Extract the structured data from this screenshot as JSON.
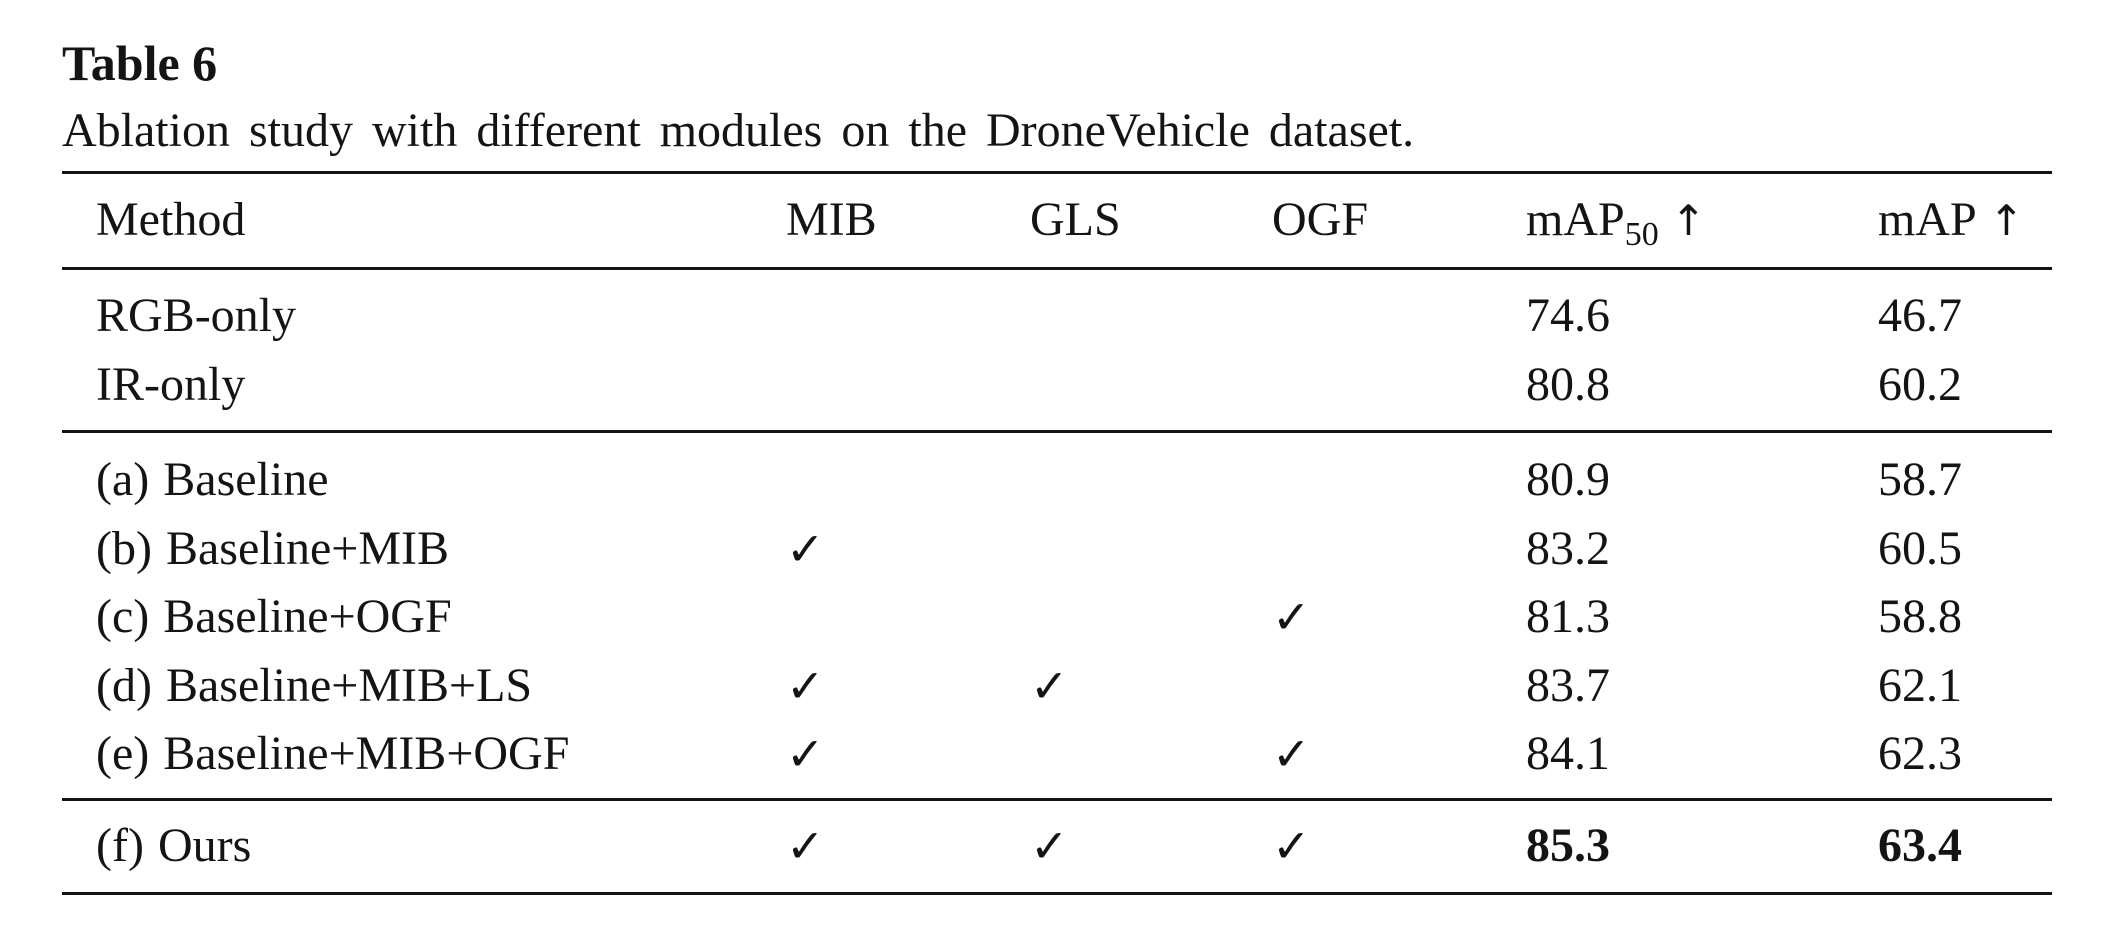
{
  "table": {
    "label": "Table 6",
    "caption": "Ablation study with different modules on the DroneVehicle dataset.",
    "headers": {
      "method": "Method",
      "mib": "MIB",
      "gls": "GLS",
      "ogf": "OGF",
      "map50_base": "mAP",
      "map50_sub": "50",
      "map50_arrow": "↑",
      "map": "mAP",
      "map_arrow": "↑"
    },
    "check_symbol": "✓",
    "groups": [
      [
        {
          "tag": "",
          "method": "RGB-only",
          "mib": "",
          "gls": "",
          "ogf": "",
          "map50": "74.6",
          "map": "46.7",
          "bold": false
        },
        {
          "tag": "",
          "method": "IR-only",
          "mib": "",
          "gls": "",
          "ogf": "",
          "map50": "80.8",
          "map": "60.2",
          "bold": false
        }
      ],
      [
        {
          "tag": "(a)",
          "method": "Baseline",
          "mib": "",
          "gls": "",
          "ogf": "",
          "map50": "80.9",
          "map": "58.7",
          "bold": false
        },
        {
          "tag": "(b)",
          "method": "Baseline+MIB",
          "mib": "✓",
          "gls": "",
          "ogf": "",
          "map50": "83.2",
          "map": "60.5",
          "bold": false
        },
        {
          "tag": "(c)",
          "method": "Baseline+OGF",
          "mib": "",
          "gls": "",
          "ogf": "✓",
          "map50": "81.3",
          "map": "58.8",
          "bold": false
        },
        {
          "tag": "(d)",
          "method": "Baseline+MIB+LS",
          "mib": "✓",
          "gls": "✓",
          "ogf": "",
          "map50": "83.7",
          "map": "62.1",
          "bold": false
        },
        {
          "tag": "(e)",
          "method": "Baseline+MIB+OGF",
          "mib": "✓",
          "gls": "",
          "ogf": "✓",
          "map50": "84.1",
          "map": "62.3",
          "bold": false
        }
      ],
      [
        {
          "tag": "(f)",
          "method": "Ours",
          "mib": "✓",
          "gls": "✓",
          "ogf": "✓",
          "map50": "85.3",
          "map": "63.4",
          "bold": true
        }
      ]
    ]
  }
}
